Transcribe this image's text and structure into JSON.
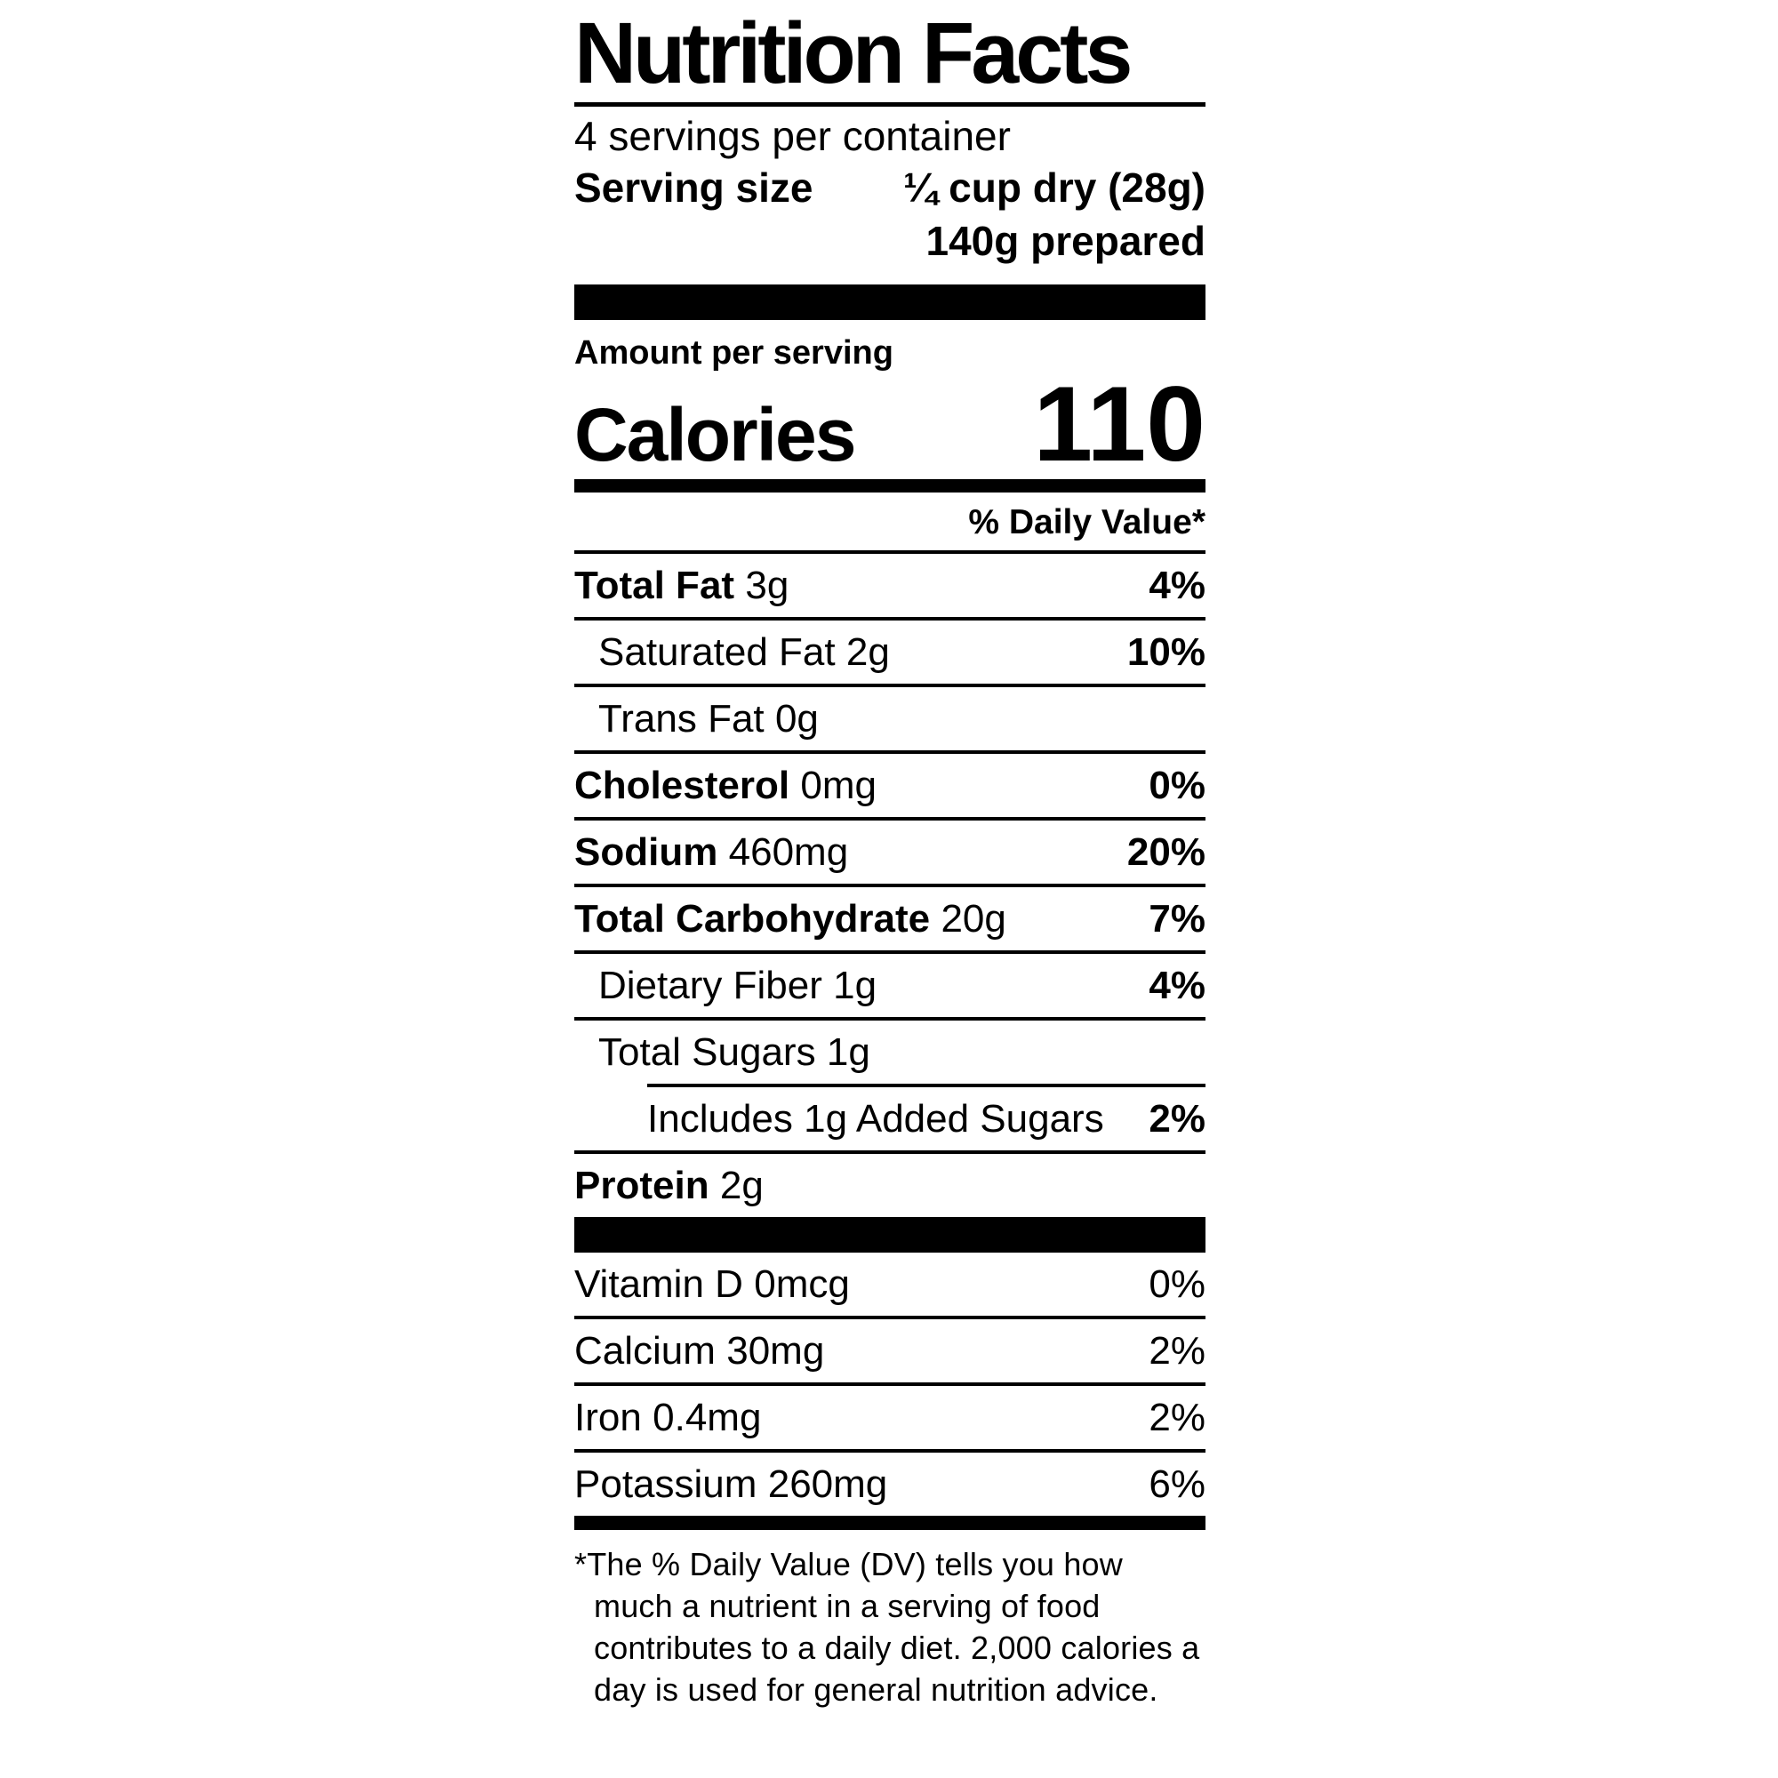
{
  "label": {
    "title": "Nutrition Facts",
    "servings_per_container": "4 servings per container",
    "serving_size": {
      "label": "Serving size",
      "value_line1": "¼ cup dry (28g)",
      "value_line2": "140g prepared"
    },
    "amount_per_serving": "Amount per serving",
    "calories": {
      "label": "Calories",
      "value": "110"
    },
    "daily_value_header": "% Daily Value*",
    "rows": [
      {
        "name": "Total Fat",
        "amount": "3g",
        "dv": "4%"
      },
      {
        "name": "Saturated Fat",
        "amount": "2g",
        "dv": "10%"
      },
      {
        "name": "Trans Fat",
        "amount": "0g",
        "dv": ""
      },
      {
        "name": "Cholesterol",
        "amount": "0mg",
        "dv": "0%"
      },
      {
        "name": "Sodium",
        "amount": "460mg",
        "dv": "20%"
      },
      {
        "name": "Total Carbohydrate",
        "amount": "20g",
        "dv": "7%"
      },
      {
        "name": "Dietary Fiber",
        "amount": "1g",
        "dv": "4%"
      },
      {
        "name": "Total Sugars",
        "amount": "1g",
        "dv": ""
      },
      {
        "name": "Includes 1g Added Sugars",
        "amount": "",
        "dv": "2%"
      },
      {
        "name": "Protein",
        "amount": "2g",
        "dv": ""
      }
    ],
    "micronutrients": [
      {
        "name": "Vitamin D",
        "amount": "0mcg",
        "dv": "0%"
      },
      {
        "name": "Calcium",
        "amount": "30mg",
        "dv": "2%"
      },
      {
        "name": "Iron",
        "amount": "0.4mg",
        "dv": "2%"
      },
      {
        "name": "Potassium",
        "amount": "260mg",
        "dv": "6%"
      }
    ],
    "footnote": "*The % Daily Value (DV) tells you how much a nutrient in a serving of food contributes to a daily diet. 2,000 calories a day is used for general nutrition advice.",
    "colors": {
      "text": "#000000",
      "background": "#ffffff"
    }
  }
}
